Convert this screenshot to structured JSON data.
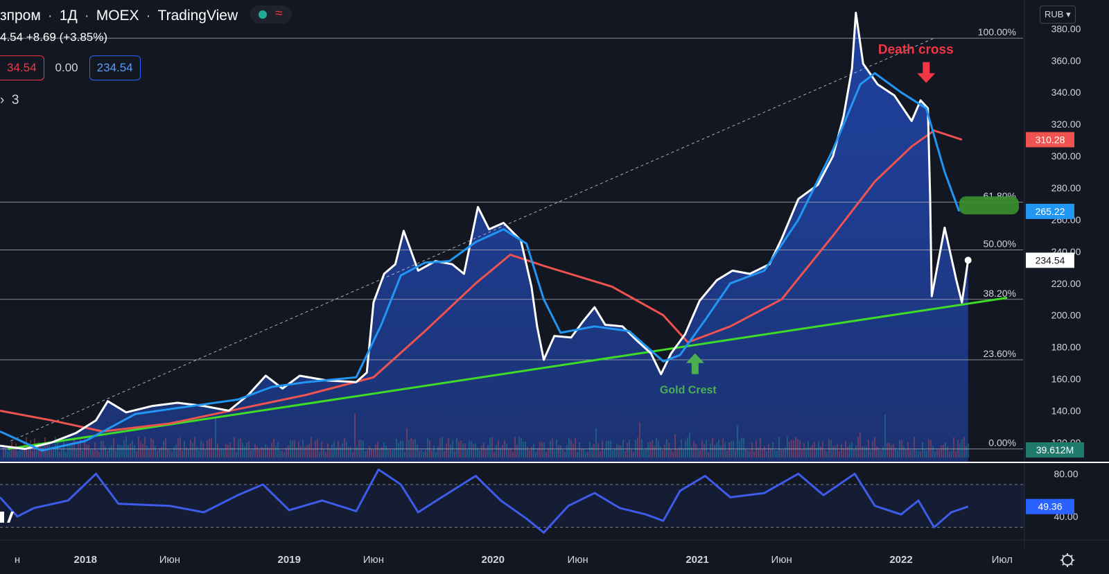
{
  "header": {
    "symbol": "зпром",
    "interval": "1Д",
    "exchange": "MOEX",
    "source": "TradingView",
    "price_fragment": "4.54",
    "change": "+8.69 (+3.85%)",
    "sell_price": "34.54",
    "spread": "0.00",
    "buy_price": "234.54",
    "indicators_count": "3",
    "currency": "RUB"
  },
  "colors": {
    "background": "#131722",
    "price_line": "#ffffff",
    "ma_fast": "#2196f3",
    "ma_slow": "#ef5350",
    "trendline": "#3fdc27",
    "rsi": "#3f5bea",
    "annotation_red": "#f23645",
    "annotation_green": "#4caf50"
  },
  "chart_data": {
    "type": "line",
    "ylim": [
      108,
      398
    ],
    "y_ticks": [
      120,
      140,
      160,
      180,
      200,
      220,
      240,
      260,
      280,
      300,
      320,
      340,
      360,
      380
    ],
    "y_tick_labels": [
      "120.00",
      "140.00",
      "160.00",
      "180.00",
      "200.00",
      "220.00",
      "240.00",
      "260.00",
      "280.00",
      "300.00",
      "320.00",
      "340.00",
      "360.00",
      "380.00"
    ],
    "x_ticks": [
      "н",
      "2018",
      "Июн",
      "2019",
      "Июн",
      "2020",
      "Июн",
      "2021",
      "Июн",
      "2022",
      "Июл"
    ],
    "x_tick_dates": [
      "2017-09-01",
      "2018-01-01",
      "2018-06-01",
      "2019-01-01",
      "2019-06-01",
      "2020-01-01",
      "2020-06-01",
      "2021-01-01",
      "2021-06-01",
      "2022-01-01",
      "2022-07-01"
    ],
    "series": [
      {
        "key": "price",
        "points": [
          [
            "2017-08-01",
            118
          ],
          [
            "2017-09-15",
            116
          ],
          [
            "2017-11-01",
            120
          ],
          [
            "2017-12-15",
            126
          ],
          [
            "2018-01-20",
            134
          ],
          [
            "2018-02-10",
            146
          ],
          [
            "2018-03-15",
            139
          ],
          [
            "2018-05-01",
            143
          ],
          [
            "2018-06-15",
            145
          ],
          [
            "2018-08-01",
            143
          ],
          [
            "2018-09-15",
            140
          ],
          [
            "2018-10-20",
            150
          ],
          [
            "2018-11-20",
            162
          ],
          [
            "2018-12-20",
            154
          ],
          [
            "2019-01-20",
            162
          ],
          [
            "2019-03-10",
            159
          ],
          [
            "2019-05-01",
            158
          ],
          [
            "2019-05-20",
            164
          ],
          [
            "2019-06-01",
            208
          ],
          [
            "2019-06-20",
            226
          ],
          [
            "2019-07-10",
            232
          ],
          [
            "2019-07-25",
            253
          ],
          [
            "2019-08-20",
            228
          ],
          [
            "2019-09-20",
            234
          ],
          [
            "2019-10-20",
            232
          ],
          [
            "2019-11-10",
            226
          ],
          [
            "2019-12-05",
            268
          ],
          [
            "2019-12-25",
            254
          ],
          [
            "2020-01-20",
            258
          ],
          [
            "2020-02-20",
            247
          ],
          [
            "2020-03-10",
            218
          ],
          [
            "2020-03-20",
            193
          ],
          [
            "2020-04-01",
            172
          ],
          [
            "2020-04-20",
            187
          ],
          [
            "2020-05-20",
            186
          ],
          [
            "2020-06-10",
            196
          ],
          [
            "2020-07-01",
            205
          ],
          [
            "2020-07-20",
            194
          ],
          [
            "2020-08-20",
            193
          ],
          [
            "2020-09-15",
            184
          ],
          [
            "2020-10-10",
            176
          ],
          [
            "2020-10-28",
            163
          ],
          [
            "2020-11-15",
            176
          ],
          [
            "2020-12-10",
            188
          ],
          [
            "2021-01-05",
            209
          ],
          [
            "2021-02-05",
            222
          ],
          [
            "2021-03-05",
            228
          ],
          [
            "2021-04-05",
            226
          ],
          [
            "2021-05-10",
            232
          ],
          [
            "2021-06-01",
            248
          ],
          [
            "2021-07-01",
            273
          ],
          [
            "2021-08-05",
            282
          ],
          [
            "2021-09-01",
            300
          ],
          [
            "2021-09-20",
            325
          ],
          [
            "2021-10-05",
            355
          ],
          [
            "2021-10-12",
            390
          ],
          [
            "2021-10-25",
            358
          ],
          [
            "2021-11-20",
            345
          ],
          [
            "2021-12-20",
            338
          ],
          [
            "2022-01-20",
            322
          ],
          [
            "2022-02-05",
            335
          ],
          [
            "2022-02-18",
            330
          ],
          [
            "2022-02-22",
            275
          ],
          [
            "2022-02-25",
            212
          ],
          [
            "2022-03-20",
            255
          ],
          [
            "2022-04-10",
            222
          ],
          [
            "2022-04-20",
            208
          ],
          [
            "2022-05-01",
            234.54
          ]
        ]
      },
      {
        "key": "ma_fast",
        "points": [
          [
            "2017-08-01",
            127
          ],
          [
            "2017-10-15",
            115
          ],
          [
            "2018-01-01",
            121
          ],
          [
            "2018-04-01",
            138
          ],
          [
            "2018-08-01",
            144
          ],
          [
            "2018-10-01",
            147
          ],
          [
            "2018-12-01",
            155
          ],
          [
            "2019-02-01",
            158
          ],
          [
            "2019-05-01",
            161
          ],
          [
            "2019-06-15",
            194
          ],
          [
            "2019-07-20",
            225
          ],
          [
            "2019-09-01",
            233
          ],
          [
            "2019-10-15",
            234
          ],
          [
            "2019-12-01",
            246
          ],
          [
            "2020-01-20",
            254
          ],
          [
            "2020-03-01",
            245
          ],
          [
            "2020-04-01",
            210
          ],
          [
            "2020-05-01",
            189
          ],
          [
            "2020-07-01",
            193
          ],
          [
            "2020-09-01",
            190
          ],
          [
            "2020-11-01",
            171
          ],
          [
            "2020-12-01",
            175
          ],
          [
            "2021-01-15",
            197
          ],
          [
            "2021-03-01",
            220
          ],
          [
            "2021-05-01",
            228
          ],
          [
            "2021-07-01",
            260
          ],
          [
            "2021-09-01",
            304
          ],
          [
            "2021-10-20",
            345
          ],
          [
            "2021-11-15",
            352
          ],
          [
            "2022-01-01",
            340
          ],
          [
            "2022-02-15",
            330
          ],
          [
            "2022-03-20",
            290
          ],
          [
            "2022-04-15",
            265.22
          ]
        ]
      },
      {
        "key": "ma_slow",
        "points": [
          [
            "2017-08-01",
            140
          ],
          [
            "2017-11-01",
            134
          ],
          [
            "2018-02-01",
            127
          ],
          [
            "2018-06-01",
            132
          ],
          [
            "2018-10-01",
            141
          ],
          [
            "2019-02-01",
            150
          ],
          [
            "2019-06-01",
            161
          ],
          [
            "2019-09-01",
            190
          ],
          [
            "2019-12-01",
            220
          ],
          [
            "2020-02-01",
            238
          ],
          [
            "2020-04-01",
            231
          ],
          [
            "2020-08-01",
            218
          ],
          [
            "2020-11-01",
            200
          ],
          [
            "2020-12-15",
            183
          ],
          [
            "2021-03-01",
            193
          ],
          [
            "2021-06-01",
            210
          ],
          [
            "2021-09-01",
            250
          ],
          [
            "2021-11-15",
            284
          ],
          [
            "2022-01-20",
            306
          ],
          [
            "2022-03-01",
            316
          ],
          [
            "2022-04-20",
            310.28
          ]
        ]
      },
      {
        "key": "trendline",
        "points": [
          [
            "2017-08-15",
            116
          ],
          [
            "2022-07-10",
            211
          ]
        ]
      },
      {
        "key": "fib_guide",
        "points": [
          [
            "2017-08-20",
            121
          ],
          [
            "2022-03-01",
            374
          ]
        ]
      }
    ],
    "fibonacci_levels": [
      {
        "label": "100.00%",
        "value": 374
      },
      {
        "label": "61.80%",
        "value": 271
      },
      {
        "label": "50.00%",
        "value": 241
      },
      {
        "label": "38.20%",
        "value": 210
      },
      {
        "label": "23.60%",
        "value": 172
      },
      {
        "label": "0.00%",
        "value": 116
      }
    ],
    "badges": [
      {
        "label": "310.28",
        "value": 310.28,
        "color": "#ef5350"
      },
      {
        "label": "265.22",
        "value": 265.22,
        "color": "#2196f3"
      },
      {
        "label": "234.54",
        "value": 234.54,
        "color": "#ffffff"
      }
    ],
    "volume_label": "39.612M",
    "annotations": [
      {
        "text": "Death cross",
        "date": "2022-02-15",
        "value": 352,
        "color": "#f23645",
        "arrow": "down"
      },
      {
        "text": "Gold Crest",
        "date": "2020-12-28",
        "value": 170,
        "color": "#4caf50",
        "arrow": "up"
      }
    ],
    "highlight_zone": {
      "start": "2022-04-15",
      "end": "2022-07-31",
      "value": 269
    },
    "rsi": {
      "ylim": [
        20,
        90
      ],
      "levels": [
        70,
        30
      ],
      "y_tick_labels": [
        "80.00",
        "40.00"
      ],
      "y_ticks": [
        80,
        40
      ],
      "current_label": "49.36",
      "current": 49.36,
      "points": [
        [
          "2017-08-01",
          58
        ],
        [
          "2017-09-01",
          40
        ],
        [
          "2017-10-01",
          48
        ],
        [
          "2017-12-01",
          55
        ],
        [
          "2018-01-20",
          80
        ],
        [
          "2018-03-01",
          52
        ],
        [
          "2018-06-01",
          50
        ],
        [
          "2018-08-01",
          44
        ],
        [
          "2018-10-01",
          60
        ],
        [
          "2018-11-15",
          70
        ],
        [
          "2019-01-01",
          46
        ],
        [
          "2019-03-01",
          55
        ],
        [
          "2019-05-01",
          45
        ],
        [
          "2019-06-10",
          84
        ],
        [
          "2019-07-20",
          70
        ],
        [
          "2019-08-20",
          44
        ],
        [
          "2019-10-01",
          58
        ],
        [
          "2019-12-01",
          78
        ],
        [
          "2020-01-15",
          55
        ],
        [
          "2020-03-01",
          38
        ],
        [
          "2020-04-01",
          25
        ],
        [
          "2020-05-15",
          50
        ],
        [
          "2020-07-01",
          62
        ],
        [
          "2020-08-15",
          48
        ],
        [
          "2020-10-01",
          42
        ],
        [
          "2020-11-01",
          36
        ],
        [
          "2020-12-01",
          64
        ],
        [
          "2021-01-15",
          78
        ],
        [
          "2021-03-01",
          58
        ],
        [
          "2021-05-01",
          62
        ],
        [
          "2021-07-01",
          80
        ],
        [
          "2021-08-15",
          60
        ],
        [
          "2021-10-10",
          80
        ],
        [
          "2021-11-15",
          50
        ],
        [
          "2022-01-01",
          42
        ],
        [
          "2022-02-01",
          55
        ],
        [
          "2022-03-01",
          30
        ],
        [
          "2022-04-01",
          44
        ],
        [
          "2022-05-01",
          49.36
        ]
      ]
    }
  }
}
